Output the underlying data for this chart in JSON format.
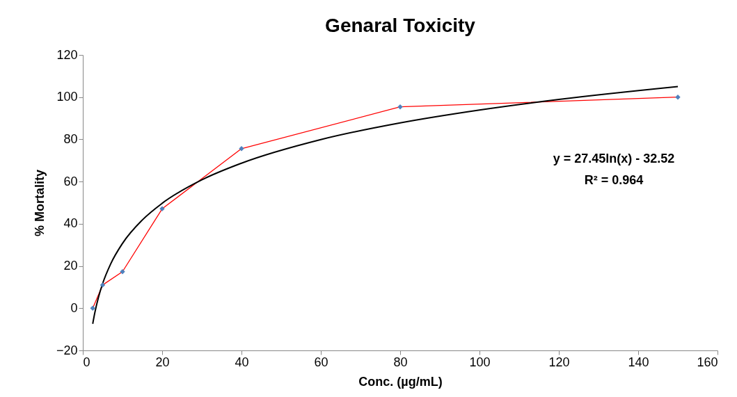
{
  "chart_data": {
    "type": "line",
    "title": "Genaral Toxicity",
    "xlabel": "Conc. (µg/mL)",
    "ylabel": "% Mortality",
    "xlim": [
      0,
      160
    ],
    "xticks": [
      0,
      20,
      40,
      60,
      80,
      100,
      120,
      140,
      160
    ],
    "ylim": [
      -20,
      120
    ],
    "yticks": [
      -20,
      0,
      20,
      40,
      60,
      80,
      100,
      120
    ],
    "marker": "diamond",
    "series": [
      {
        "color": "#ff0000",
        "x": [
          2.5,
          5,
          10,
          20,
          40,
          80,
          150
        ],
        "values": [
          0,
          11,
          17.3,
          47.1,
          75.6,
          95.4,
          100
        ]
      },
      {
        "marker": "none",
        "color": "#000000",
        "x": [
          2.5,
          3,
          4,
          5,
          7,
          10,
          15,
          20,
          30,
          40,
          60,
          80,
          100,
          120,
          150
        ],
        "values": [
          -7.4,
          -2.4,
          5.5,
          11.7,
          20.9,
          30.7,
          41.8,
          49.7,
          60.8,
          68.7,
          79.9,
          87.8,
          93.9,
          98.9,
          105.0
        ]
      }
    ],
    "annotations": [
      "y = 27.45ln(x) - 32.52",
      "R² = 0.964"
    ]
  }
}
